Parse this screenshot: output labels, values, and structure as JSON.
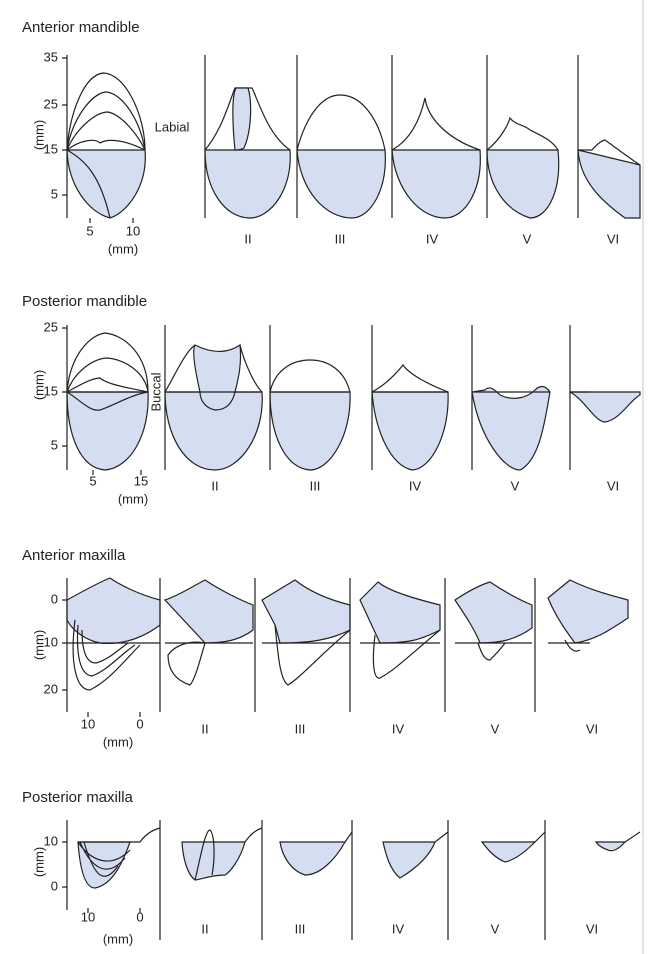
{
  "panels": [
    {
      "title": "Anterior mandible",
      "y_axis_label": "(mm)",
      "y_ticks": [
        "35",
        "25",
        "15",
        "5"
      ],
      "x_ticks": [
        "5",
        "10"
      ],
      "x_axis_label": "(mm)",
      "side_label": "Labial",
      "classes": [
        "II",
        "III",
        "IV",
        "V",
        "VI"
      ]
    },
    {
      "title": "Posterior mandible",
      "y_axis_label": "(mm)",
      "y_ticks": [
        "25",
        "15",
        "5"
      ],
      "x_ticks": [
        "5",
        "15"
      ],
      "x_axis_label": "(mm)",
      "side_label": "Buccal",
      "classes": [
        "II",
        "III",
        "IV",
        "V",
        "VI"
      ]
    },
    {
      "title": "Anterior maxilla",
      "y_axis_label": "(mm)",
      "y_ticks": [
        "0",
        "10",
        "20"
      ],
      "x_ticks": [
        "10",
        "0"
      ],
      "x_axis_label": "(mm)",
      "classes": [
        "II",
        "III",
        "IV",
        "V",
        "VI"
      ]
    },
    {
      "title": "Posterior maxilla",
      "y_axis_label": "(mm)",
      "y_ticks": [
        "10",
        "0"
      ],
      "x_ticks": [
        "10",
        "0"
      ],
      "x_axis_label": "(mm)",
      "classes": [
        "II",
        "III",
        "IV",
        "V",
        "VI"
      ]
    }
  ]
}
